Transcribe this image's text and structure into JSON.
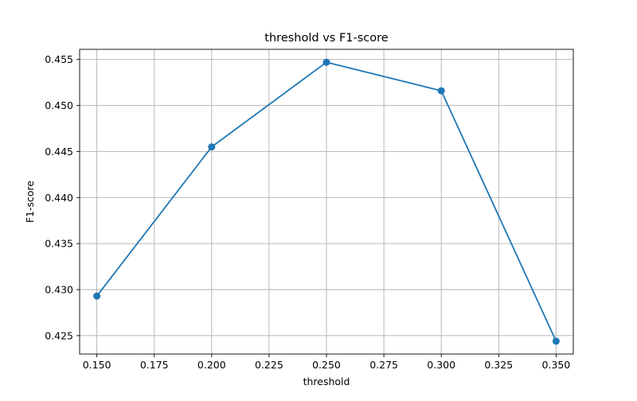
{
  "chart_data": {
    "type": "line",
    "title": "threshold vs F1-score",
    "xlabel": "threshold",
    "ylabel": "F1-score",
    "x": [
      0.15,
      0.2,
      0.25,
      0.3,
      0.35
    ],
    "series": [
      {
        "values": [
          0.4293,
          0.4455,
          0.4547,
          0.4516,
          0.4244
        ],
        "color": "#1f77b4",
        "marker": "circle"
      }
    ],
    "xlim": [
      0.1425,
      0.3575
    ],
    "ylim": [
      0.423,
      0.4561
    ],
    "x_ticks": [
      0.15,
      0.175,
      0.2,
      0.225,
      0.25,
      0.275,
      0.3,
      0.325,
      0.35
    ],
    "x_tick_labels": [
      "0.150",
      "0.175",
      "0.200",
      "0.225",
      "0.250",
      "0.275",
      "0.300",
      "0.325",
      "0.350"
    ],
    "y_ticks": [
      0.425,
      0.43,
      0.435,
      0.44,
      0.445,
      0.45,
      0.455
    ],
    "y_tick_labels": [
      "0.425",
      "0.430",
      "0.435",
      "0.440",
      "0.445",
      "0.450",
      "0.455"
    ],
    "grid": true,
    "grid_color": "#b0b0b0",
    "line_color": "#1f77b4"
  }
}
